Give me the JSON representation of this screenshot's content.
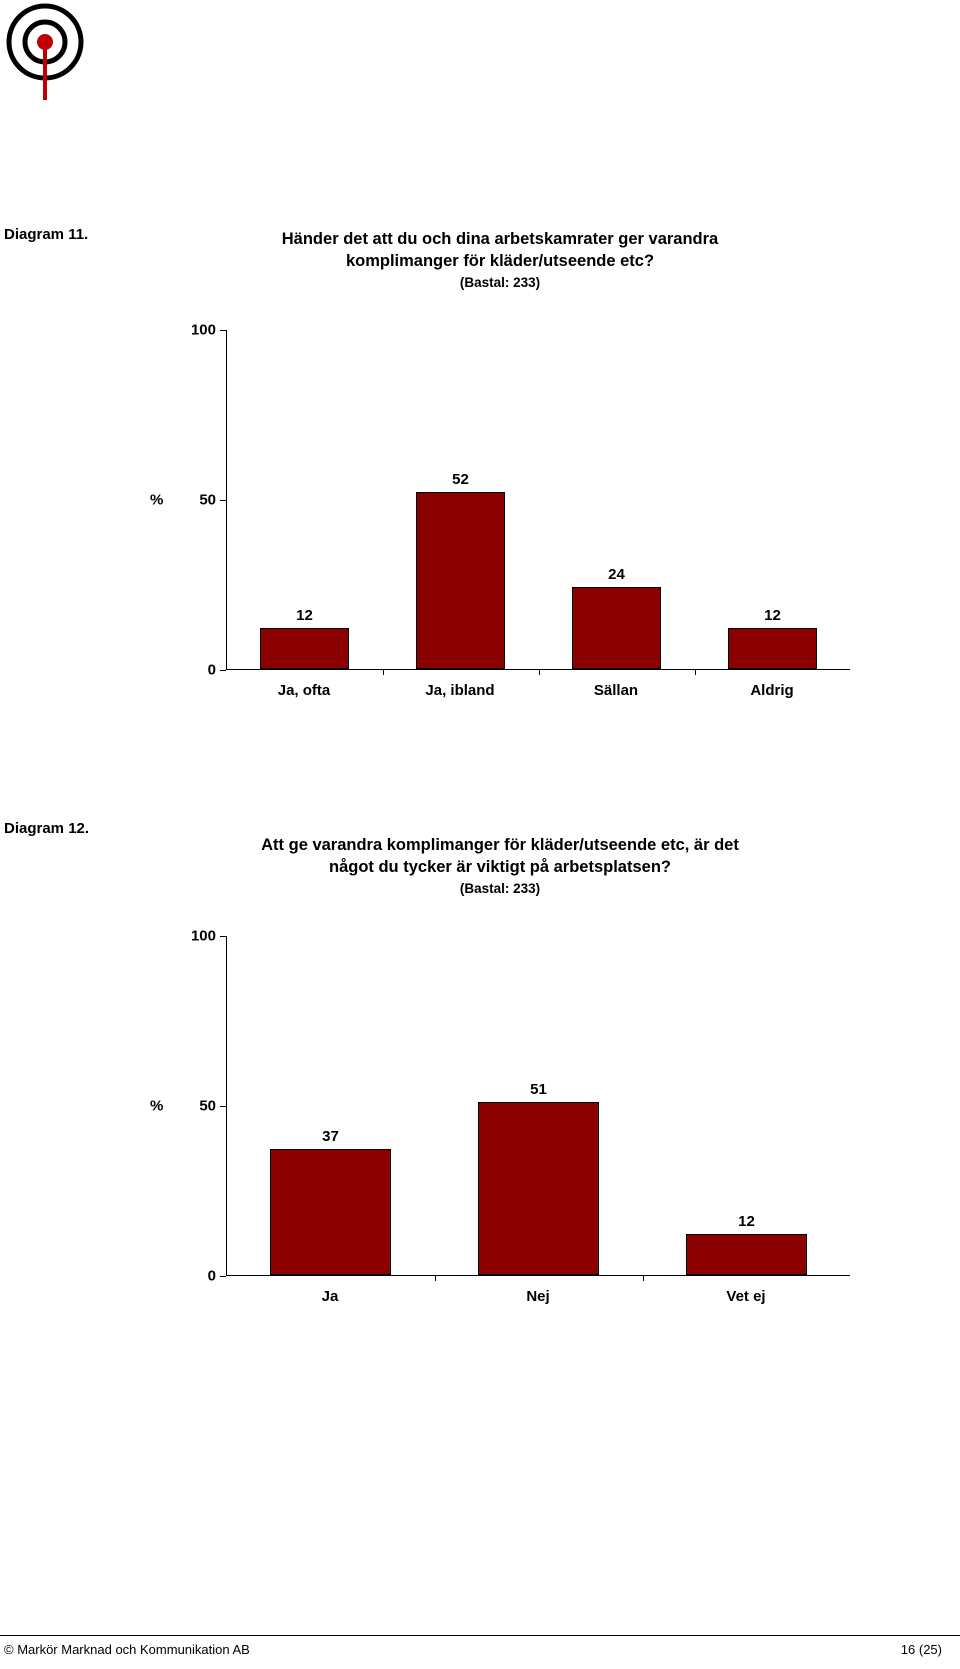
{
  "logo": {
    "outer_ring": "#000000",
    "inner_ring": "#000000",
    "dot": "#c00000",
    "stem": "#c00000"
  },
  "chart1": {
    "diagram_label": "Diagram 11.",
    "title_line1": "Händer det att du och dina arbetskamrater ger varandra",
    "title_line2": "komplimanger för kläder/utseende etc?",
    "subtitle": "(Bastal: 233)",
    "type": "bar",
    "categories": [
      "Ja, ofta",
      "Ja, ibland",
      "Sällan",
      "Aldrig"
    ],
    "values": [
      12,
      52,
      24,
      12
    ],
    "ylim": [
      0,
      100
    ],
    "yticks": [
      0,
      50,
      100
    ],
    "y_unit_prefix": "%",
    "bar_color": "#8b0000",
    "bar_border": "#000000",
    "background": "#ffffff",
    "label_fontsize": 15,
    "value_fontsize": 15,
    "title_fontsize": 16.5
  },
  "chart2": {
    "diagram_label": "Diagram 12.",
    "title_line1": "Att ge varandra komplimanger för kläder/utseende etc, är det",
    "title_line2": "något du tycker är viktigt på arbetsplatsen?",
    "subtitle": "(Bastal: 233)",
    "type": "bar",
    "categories": [
      "Ja",
      "Nej",
      "Vet ej"
    ],
    "values": [
      37,
      51,
      12
    ],
    "ylim": [
      0,
      100
    ],
    "yticks": [
      0,
      50,
      100
    ],
    "y_unit_prefix": "%",
    "bar_color": "#8b0000",
    "bar_border": "#000000",
    "background": "#ffffff",
    "label_fontsize": 15,
    "value_fontsize": 15,
    "title_fontsize": 16.5
  },
  "footer": {
    "left": "© Markör Marknad och Kommunikation AB",
    "right": "16 (25)"
  }
}
